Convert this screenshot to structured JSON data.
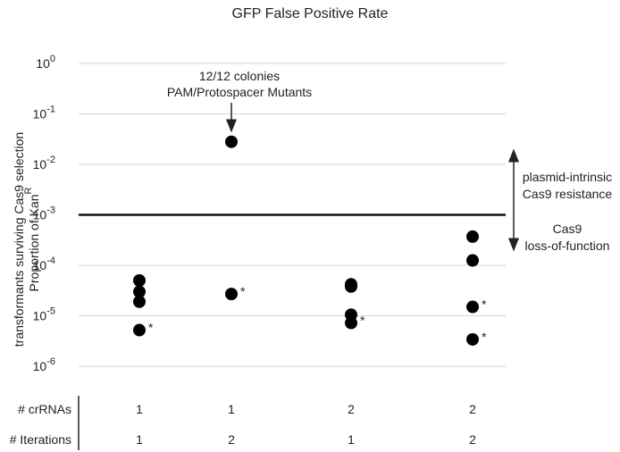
{
  "chart_data": {
    "type": "scatter",
    "title": "GFP False Positive Rate",
    "ylabel_line1": "transformants surviving Cas9 selection",
    "ylabel_line2_prefix": "Proportion of Kan",
    "ylabel_line2_superscript": "R",
    "y_scale": "log",
    "ylim": [
      1e-06,
      1
    ],
    "y_ticks": [
      {
        "value": 1,
        "base": "10",
        "exp": "0"
      },
      {
        "value": 0.1,
        "base": "10",
        "exp": "-1"
      },
      {
        "value": 0.01,
        "base": "10",
        "exp": "-2"
      },
      {
        "value": 0.001,
        "base": "10",
        "exp": "-3"
      },
      {
        "value": 0.0001,
        "base": "10",
        "exp": "-4"
      },
      {
        "value": 1e-05,
        "base": "10",
        "exp": "-5"
      },
      {
        "value": 1e-06,
        "base": "10",
        "exp": "-6"
      }
    ],
    "grid": true,
    "groups": [
      {
        "crRNAs": "1",
        "iterations": "1",
        "points": [
          {
            "y": 5e-05
          },
          {
            "y": 3e-05
          },
          {
            "y": 1.9e-05
          },
          {
            "y": 5.2e-06,
            "marker": "*"
          }
        ]
      },
      {
        "crRNAs": "1",
        "iterations": "2",
        "points": [
          {
            "y": 0.028
          },
          {
            "y": 2.7e-05,
            "marker": "*"
          }
        ]
      },
      {
        "crRNAs": "2",
        "iterations": "1",
        "points": [
          {
            "y": 4.2e-05
          },
          {
            "y": 3.8e-05
          },
          {
            "y": 1.05e-05
          },
          {
            "y": 7.2e-06,
            "marker": "*"
          }
        ]
      },
      {
        "crRNAs": "2",
        "iterations": "2",
        "points": [
          {
            "y": 0.00037
          },
          {
            "y": 0.000125
          },
          {
            "y": 1.5e-05,
            "marker": "*"
          },
          {
            "y": 3.4e-06,
            "marker": "*"
          }
        ]
      }
    ],
    "threshold": {
      "y": 0.001
    },
    "annotations": {
      "top_point_line1": "12/12 colonies",
      "top_point_line2": "PAM/Protospacer Mutants",
      "above_threshold_line1": "plasmid-intrinsic",
      "above_threshold_line2": "Cas9 resistance",
      "below_threshold_line1": "Cas9",
      "below_threshold_line2": "loss-of-function"
    },
    "table_rows": [
      {
        "label": "# crRNAs",
        "values": [
          "1",
          "1",
          "2",
          "2"
        ]
      },
      {
        "label": "# Iterations",
        "values": [
          "1",
          "2",
          "1",
          "2"
        ]
      }
    ]
  }
}
